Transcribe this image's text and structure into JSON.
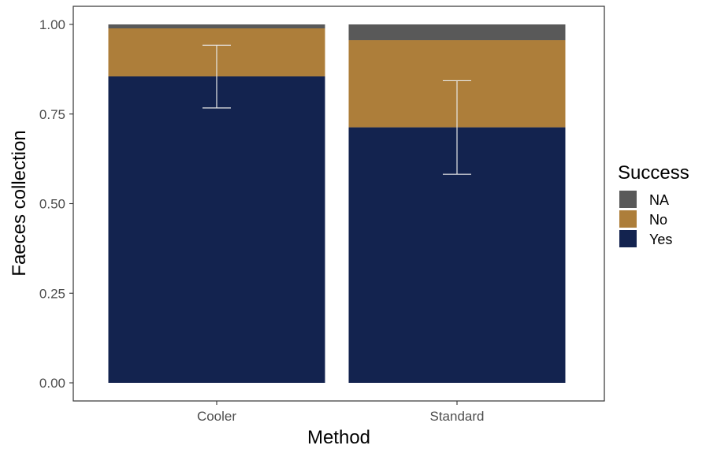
{
  "chart_data": {
    "type": "bar",
    "stacked": true,
    "proportional": true,
    "categories": [
      "Cooler",
      "Standard"
    ],
    "series": [
      {
        "name": "Yes",
        "color": "#13234F",
        "values": [
          0.855,
          0.713
        ]
      },
      {
        "name": "No",
        "color": "#AD7E3A",
        "values": [
          0.134,
          0.243
        ]
      },
      {
        "name": "NA",
        "color": "#595959",
        "values": [
          0.011,
          0.044
        ]
      }
    ],
    "error_bars": [
      {
        "category": "Cooler",
        "lower": 0.767,
        "upper": 0.942
      },
      {
        "category": "Standard",
        "lower": 0.582,
        "upper": 0.843
      }
    ],
    "xlabel": "Method",
    "ylabel": "Faeces collection",
    "ylim": [
      0,
      1
    ],
    "yticks": [
      "0.00",
      "0.25",
      "0.50",
      "0.75",
      "1.00"
    ],
    "ytick_values": [
      0,
      0.25,
      0.5,
      0.75,
      1.0
    ],
    "legend": {
      "title": "Success",
      "entries": [
        "NA",
        "No",
        "Yes"
      ],
      "placement": "right"
    },
    "grid": false
  }
}
